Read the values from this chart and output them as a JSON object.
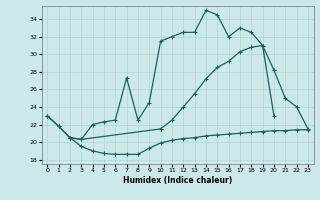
{
  "xlabel": "Humidex (Indice chaleur)",
  "bg_color": "#cce8e8",
  "line_color": "#1a6060",
  "grid_color": "#afd4d4",
  "ylim": [
    17.5,
    35.5
  ],
  "xlim": [
    -0.5,
    23.5
  ],
  "yticks": [
    18,
    20,
    22,
    24,
    26,
    28,
    30,
    32,
    34
  ],
  "xticks": [
    0,
    1,
    2,
    3,
    4,
    5,
    6,
    7,
    8,
    9,
    10,
    11,
    12,
    13,
    14,
    15,
    16,
    17,
    18,
    19,
    20,
    21,
    22,
    23
  ],
  "series1_x": [
    0,
    1,
    2,
    3,
    4,
    5,
    6,
    7,
    8,
    9,
    10,
    11,
    12,
    13,
    14,
    15,
    16,
    17,
    18,
    19,
    20,
    21,
    22,
    23
  ],
  "series1_y": [
    23.0,
    21.8,
    20.5,
    19.5,
    19.0,
    18.7,
    18.6,
    18.6,
    18.6,
    19.3,
    19.9,
    20.2,
    20.4,
    20.5,
    20.7,
    20.8,
    20.9,
    21.0,
    21.1,
    21.2,
    21.3,
    21.3,
    21.4,
    21.4
  ],
  "series2_x": [
    0,
    1,
    2,
    3,
    4,
    5,
    6,
    7,
    8,
    9,
    10,
    11,
    12,
    13,
    14,
    15,
    16,
    17,
    18,
    19,
    20,
    21,
    22,
    23
  ],
  "series2_y": [
    23.0,
    21.8,
    20.5,
    20.3,
    22.0,
    22.3,
    22.5,
    27.3,
    22.5,
    24.5,
    31.5,
    32.0,
    32.5,
    32.5,
    35.0,
    34.5,
    32.0,
    33.0,
    32.5,
    31.0,
    23.0,
    null,
    null,
    null
  ],
  "series3_x": [
    2,
    3,
    10,
    11,
    12,
    13,
    14,
    15,
    16,
    17,
    18,
    19,
    20,
    21,
    22,
    23
  ],
  "series3_y": [
    20.5,
    20.3,
    21.5,
    22.5,
    24.0,
    25.5,
    27.2,
    28.5,
    29.2,
    30.3,
    30.8,
    31.0,
    28.2,
    25.0,
    24.0,
    21.5
  ]
}
